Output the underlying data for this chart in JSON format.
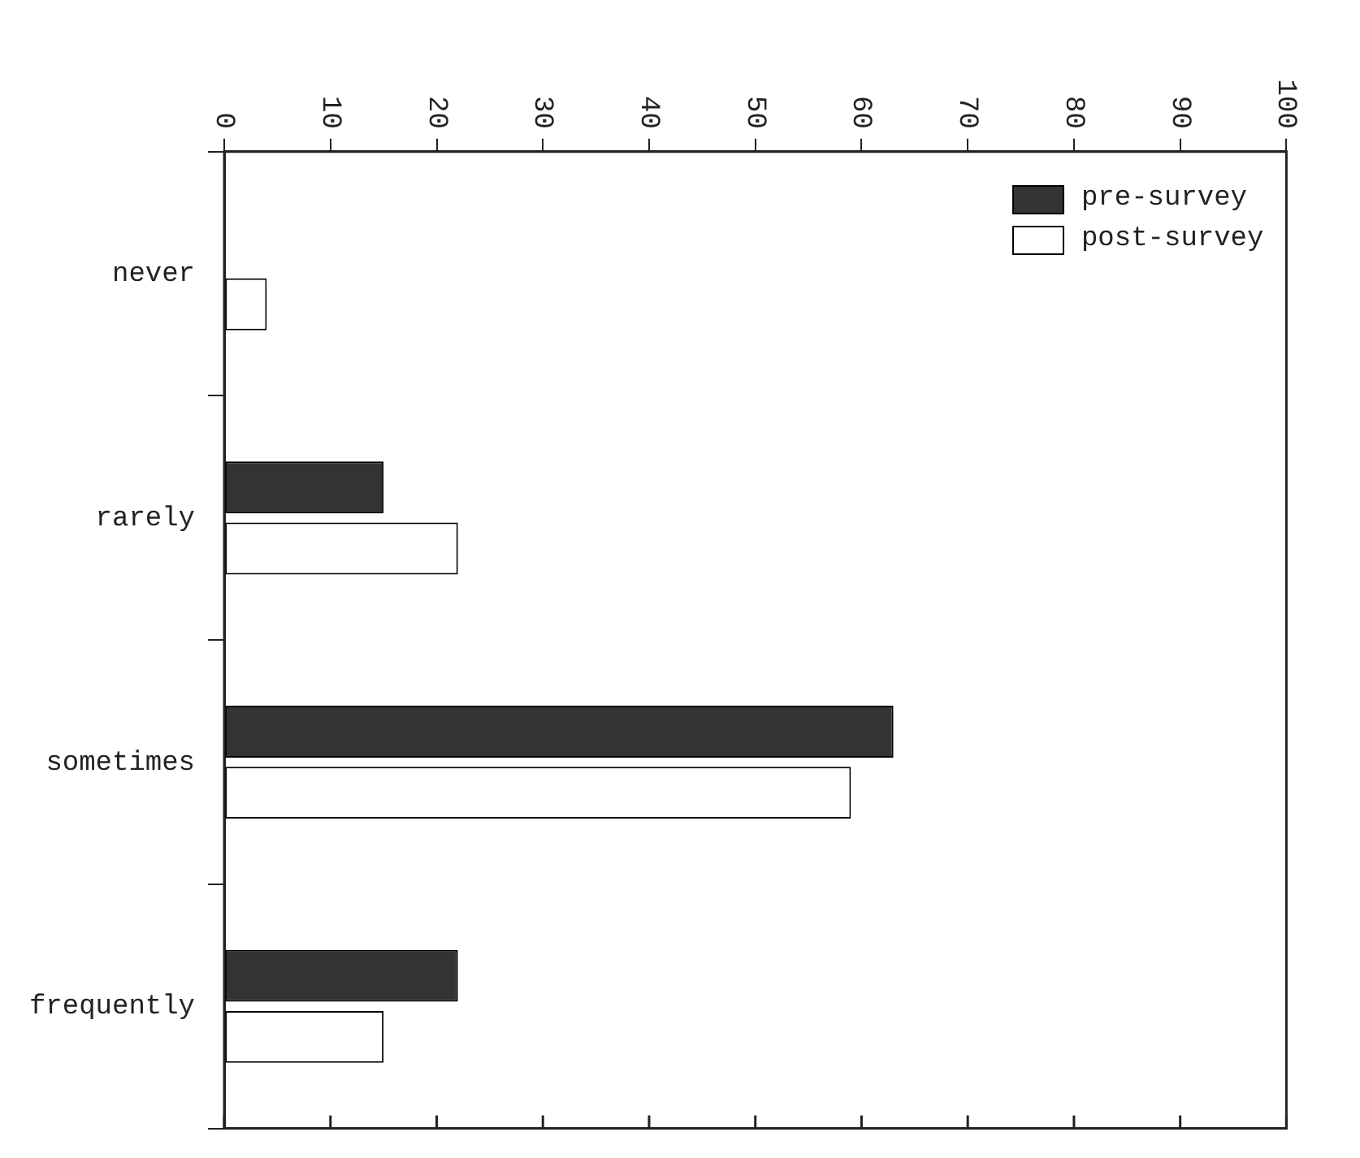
{
  "chart_data": {
    "type": "bar",
    "orientation": "horizontal",
    "categories": [
      "never",
      "rarely",
      "sometimes",
      "frequently"
    ],
    "series": [
      {
        "name": "pre-survey",
        "color": "#333333",
        "values": [
          0,
          15,
          63,
          22
        ]
      },
      {
        "name": "post-survey",
        "color": "#ffffff",
        "values": [
          4,
          22,
          59,
          15
        ]
      }
    ],
    "xlim": [
      0,
      100
    ],
    "xticks": [
      0,
      10,
      20,
      30,
      40,
      50,
      60,
      70,
      80,
      90,
      100
    ],
    "grid": false,
    "legend": "top right"
  }
}
